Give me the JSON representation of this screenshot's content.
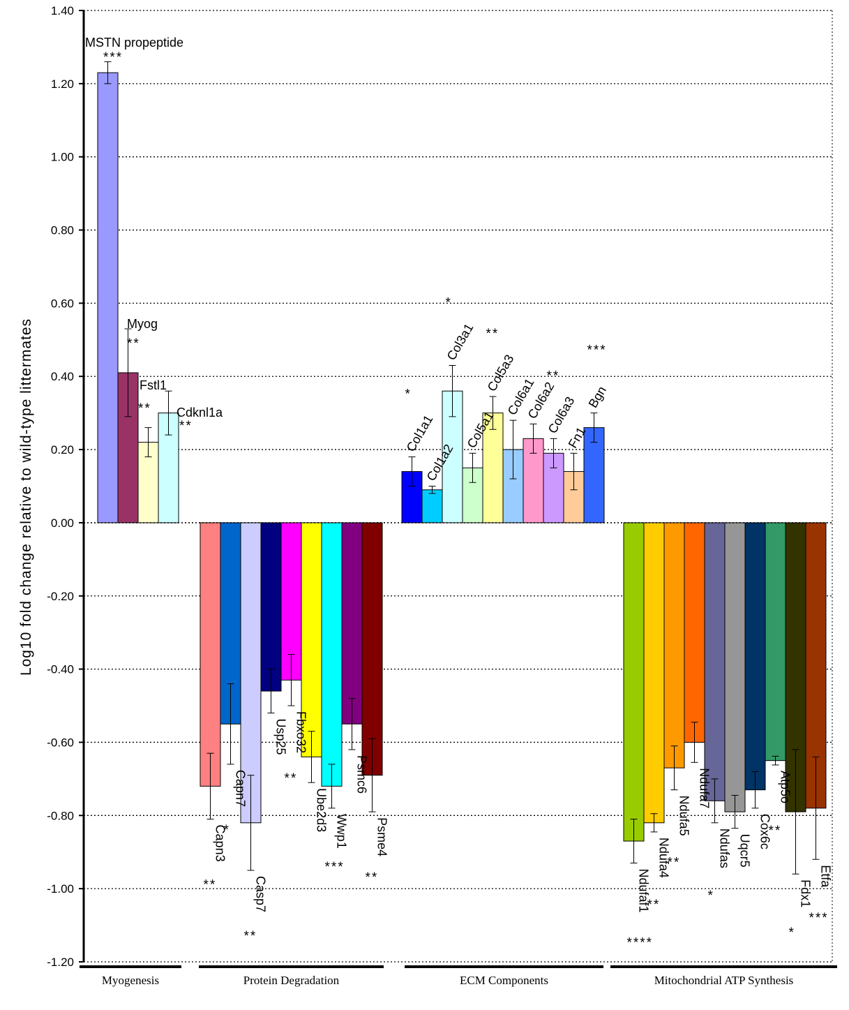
{
  "chart_data": {
    "type": "bar",
    "title": "",
    "ylabel": "Log10  fold change relative to wild-type littermates",
    "ylim": [
      -1.2,
      1.4
    ],
    "ytick_step": 0.2,
    "grid": "horizontal dotted",
    "groups": [
      {
        "name": "Myogenesis",
        "bars": [
          {
            "label": "MSTN propeptide",
            "value": 1.23,
            "error": 0.03,
            "sig": "***",
            "color": "#9999ff"
          },
          {
            "label": "Myog",
            "value": 0.41,
            "error": 0.12,
            "sig": "**",
            "color": "#993366"
          },
          {
            "label": "Fstl1",
            "value": 0.22,
            "error": 0.04,
            "sig": "**",
            "color": "#ffffcc"
          },
          {
            "label": "Cdknl1a",
            "value": 0.3,
            "error": 0.06,
            "sig": "**",
            "color": "#ccffff"
          }
        ]
      },
      {
        "name": "Protein Degradation",
        "bars": [
          {
            "label": "Capn3",
            "value": -0.72,
            "error": 0.09,
            "sig": "**",
            "color": "#ff8080"
          },
          {
            "label": "Capn7",
            "value": -0.55,
            "error": 0.11,
            "sig": "*",
            "color": "#0066cc"
          },
          {
            "label": "Casp7",
            "value": -0.82,
            "error": 0.13,
            "sig": "**",
            "color": "#ccccff"
          },
          {
            "label": "Usp25",
            "value": -0.46,
            "error": 0.06,
            "sig": "",
            "color": "#000080"
          },
          {
            "label": "Fbxo32",
            "value": -0.43,
            "error": 0.07,
            "sig": "**",
            "color": "#ff00ff"
          },
          {
            "label": "Ube2d3",
            "value": -0.64,
            "error": 0.07,
            "sig": "",
            "color": "#ffff00"
          },
          {
            "label": "Wwp1",
            "value": -0.72,
            "error": 0.06,
            "sig": "***",
            "color": "#00ffff"
          },
          {
            "label": "Psmc6",
            "value": -0.55,
            "error": 0.07,
            "sig": "",
            "color": "#800080"
          },
          {
            "label": "Psme4",
            "value": -0.69,
            "error": 0.1,
            "sig": "**",
            "color": "#800000"
          }
        ]
      },
      {
        "name": "ECM Components",
        "bars": [
          {
            "label": "Col1a1",
            "value": 0.14,
            "error": 0.04,
            "sig": "*",
            "color": "#0000ff"
          },
          {
            "label": "Col1a2",
            "value": 0.09,
            "error": 0.01,
            "sig": "",
            "color": "#00ccff"
          },
          {
            "label": "Col3a1",
            "value": 0.36,
            "error": 0.07,
            "sig": "*",
            "color": "#ccffff"
          },
          {
            "label": "Col5a1",
            "value": 0.15,
            "error": 0.04,
            "sig": "",
            "color": "#ccffcc"
          },
          {
            "label": "Col5a3",
            "value": 0.3,
            "error": 0.045,
            "sig": "**",
            "color": "#ffff99"
          },
          {
            "label": "Col6a1",
            "value": 0.2,
            "error": 0.08,
            "sig": "",
            "color": "#99ccff"
          },
          {
            "label": "Col6a2",
            "value": 0.23,
            "error": 0.04,
            "sig": "",
            "color": "#ff99cc"
          },
          {
            "label": "Col6a3",
            "value": 0.19,
            "error": 0.04,
            "sig": "**",
            "color": "#cc99ff"
          },
          {
            "label": "Fn1",
            "value": 0.14,
            "error": 0.05,
            "sig": "",
            "color": "#ffcc99"
          },
          {
            "label": "Bgn",
            "value": 0.26,
            "error": 0.04,
            "sig": "***",
            "color": "#3366ff"
          }
        ]
      },
      {
        "name": "Mitochondrial ATP Synthesis",
        "bars": [
          {
            "label": "Ndufaf1",
            "value": -0.87,
            "error": 0.06,
            "sig": "****",
            "color": "#99cc00"
          },
          {
            "label": "Ndufa4",
            "value": -0.82,
            "error": 0.025,
            "sig": "**",
            "color": "#ffcc00"
          },
          {
            "label": "Ndufa5",
            "value": -0.67,
            "error": 0.06,
            "sig": "**",
            "color": "#ff9900"
          },
          {
            "label": "Ndufa7",
            "value": -0.6,
            "error": 0.055,
            "sig": "",
            "color": "#ff6600"
          },
          {
            "label": "Ndufas",
            "value": -0.76,
            "error": 0.06,
            "sig": "*",
            "color": "#666699"
          },
          {
            "label": "Uqcr5",
            "value": -0.79,
            "error": 0.045,
            "sig": "",
            "color": "#969696"
          },
          {
            "label": "Cox6c",
            "value": -0.73,
            "error": 0.05,
            "sig": "",
            "color": "#003366"
          },
          {
            "label": "Atp5o",
            "value": -0.65,
            "error": 0.012,
            "sig": "**",
            "color": "#339966"
          },
          {
            "label": "Fdx1",
            "value": -0.79,
            "error": 0.17,
            "sig": "*",
            "color": "#333300"
          },
          {
            "label": "Etfa",
            "value": -0.78,
            "error": 0.14,
            "sig": "***",
            "color": "#993300"
          }
        ]
      }
    ]
  }
}
